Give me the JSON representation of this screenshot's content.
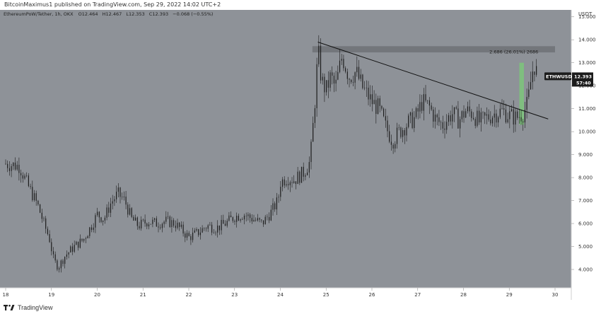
{
  "header": {
    "published_text": "BitcoinMaximus1 published on TradingView.com, Sep 29, 2022 14:02 UTC+2"
  },
  "footer": {
    "brand": "TradingView",
    "logo_icon": "tradingview-logo-icon"
  },
  "colors": {
    "plot_bg": "#8e9298",
    "axis_bg": "#ffffff",
    "candle": "#1c1c1c",
    "trendline": "#111111",
    "resistance_zone": "#6e7175",
    "highlight_bar": "#7dc57a",
    "price_tag": "#1c1c1c"
  },
  "chart_data": {
    "type": "candlestick",
    "legend": {
      "symbol_text": "EthereumPoW/Tether, 1h, OKX",
      "o_label": "O",
      "o_value": "12.464",
      "h_label": "H",
      "h_value": "12.467",
      "l_label": "L",
      "l_value": "12.353",
      "c_label": "C",
      "c_value": "12.393",
      "change": "−0.068 (−0.55%)"
    },
    "y_axis": {
      "unit_label": "USDT",
      "ylim": [
        3.2,
        15.3
      ],
      "ticks": [
        "4.000",
        "5.000",
        "6.000",
        "7.000",
        "8.000",
        "9.000",
        "10.000",
        "11.000",
        "12.000",
        "13.000",
        "14.000",
        "15.000"
      ]
    },
    "x_axis": {
      "xlim": [
        18.0,
        30.5
      ],
      "ticks": [
        "18",
        "19",
        "20",
        "21",
        "22",
        "23",
        "24",
        "25",
        "26",
        "27",
        "28",
        "29",
        "30"
      ]
    },
    "price_path": [
      [
        18.0,
        8.6
      ],
      [
        18.3,
        8.5
      ],
      [
        18.5,
        7.6
      ],
      [
        18.7,
        6.8
      ],
      [
        18.85,
        5.9
      ],
      [
        18.95,
        5.4
      ],
      [
        19.05,
        4.4
      ],
      [
        19.15,
        4.1
      ],
      [
        19.3,
        4.6
      ],
      [
        19.5,
        5.0
      ],
      [
        19.7,
        5.3
      ],
      [
        19.9,
        6.0
      ],
      [
        20.0,
        6.4
      ],
      [
        20.15,
        6.2
      ],
      [
        20.3,
        6.9
      ],
      [
        20.45,
        7.3
      ],
      [
        20.6,
        7.0
      ],
      [
        20.75,
        6.2
      ],
      [
        20.9,
        5.9
      ],
      [
        21.1,
        6.1
      ],
      [
        21.3,
        6.0
      ],
      [
        21.5,
        6.1
      ],
      [
        21.7,
        6.0
      ],
      [
        21.9,
        5.6
      ],
      [
        22.0,
        5.4
      ],
      [
        22.2,
        5.6
      ],
      [
        22.4,
        5.9
      ],
      [
        22.6,
        5.8
      ],
      [
        22.8,
        6.0
      ],
      [
        23.0,
        6.3
      ],
      [
        23.2,
        6.4
      ],
      [
        23.4,
        6.2
      ],
      [
        23.6,
        6.0
      ],
      [
        23.8,
        6.5
      ],
      [
        23.95,
        7.0
      ],
      [
        24.0,
        7.8
      ],
      [
        24.15,
        8.0
      ],
      [
        24.3,
        7.9
      ],
      [
        24.5,
        8.2
      ],
      [
        24.65,
        8.7
      ],
      [
        24.72,
        10.4
      ],
      [
        24.78,
        12.0
      ],
      [
        24.82,
        13.6
      ],
      [
        24.9,
        12.2
      ],
      [
        25.0,
        11.8
      ],
      [
        25.1,
        12.4
      ],
      [
        25.2,
        11.9
      ],
      [
        25.35,
        13.3
      ],
      [
        25.5,
        12.4
      ],
      [
        25.65,
        12.6
      ],
      [
        25.8,
        11.9
      ],
      [
        26.0,
        11.3
      ],
      [
        26.15,
        11.0
      ],
      [
        26.3,
        10.2
      ],
      [
        26.45,
        9.6
      ],
      [
        26.6,
        10.0
      ],
      [
        26.8,
        10.4
      ],
      [
        26.95,
        10.6
      ],
      [
        27.1,
        11.3
      ],
      [
        27.25,
        11.1
      ],
      [
        27.4,
        10.5
      ],
      [
        27.55,
        10.3
      ],
      [
        27.75,
        10.8
      ],
      [
        27.9,
        10.5
      ],
      [
        28.05,
        10.9
      ],
      [
        28.2,
        10.8
      ],
      [
        28.35,
        10.4
      ],
      [
        28.5,
        10.6
      ],
      [
        28.7,
        10.8
      ],
      [
        28.85,
        10.9
      ],
      [
        29.0,
        10.7
      ],
      [
        29.15,
        10.6
      ],
      [
        29.3,
        10.8
      ],
      [
        29.4,
        11.2
      ],
      [
        29.5,
        12.6
      ],
      [
        29.55,
        12.9
      ],
      [
        29.62,
        12.4
      ]
    ],
    "resistance_zone": {
      "y_low": 13.45,
      "y_high": 13.72,
      "x_start": 24.7,
      "x_end": 30.0
    },
    "trendline": {
      "from": [
        24.82,
        13.9
      ],
      "to": [
        29.85,
        10.55
      ]
    },
    "measure_box": {
      "x_start": 29.22,
      "x_end": 29.32,
      "y_low": 10.3,
      "y_high": 13.0
    },
    "measure_label": "2.686 (26.01%) 2686",
    "measure_label_anchor": [
      29.1,
      13.5
    ],
    "last_price_label": {
      "symbol": "ETHWUSDT",
      "price": "12.393",
      "countdown": "57:40",
      "y": 12.393
    }
  }
}
